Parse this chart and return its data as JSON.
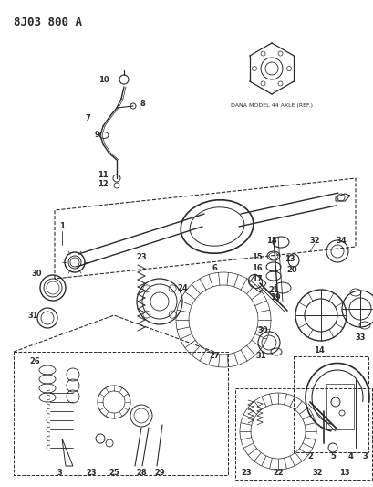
{
  "title": "8J03 800 A",
  "bg_color": "#ffffff",
  "line_color": "#2a2a2a",
  "dana_label": "DANA MODEL 44 AXLE (REF.)",
  "fig_w": 4.09,
  "fig_h": 5.33,
  "dpi": 100
}
